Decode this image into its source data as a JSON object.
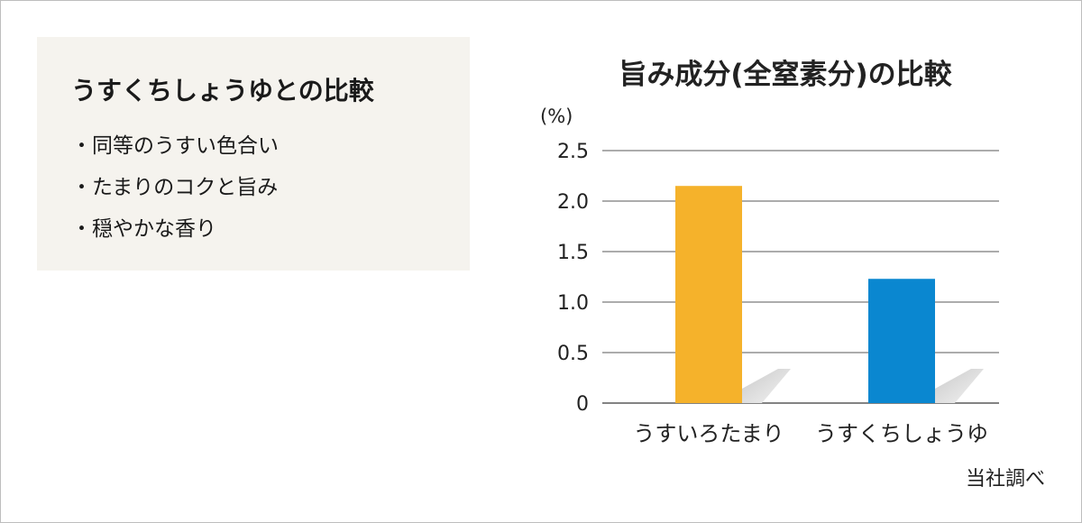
{
  "info": {
    "title": "うすくちしょうゆとの比較",
    "points": [
      "・同等のうすい色合い",
      "・たまりのコクと旨み",
      "・穏やかな香り"
    ]
  },
  "chart_data": {
    "type": "bar",
    "title": "旨み成分(全窒素分)の比較",
    "ylabel": "(%)",
    "xlabel": "",
    "categories": [
      "うすいろたまり",
      "うすくちしょうゆ"
    ],
    "values": [
      2.15,
      1.23
    ],
    "colors": [
      "#f5b22b",
      "#0a87d0"
    ],
    "ylim": [
      0,
      2.5
    ],
    "yticks": [
      "0",
      "0.5",
      "1.0",
      "1.5",
      "2.0",
      "2.5"
    ],
    "grid": true,
    "legend": "none"
  },
  "source_note": "当社調べ"
}
